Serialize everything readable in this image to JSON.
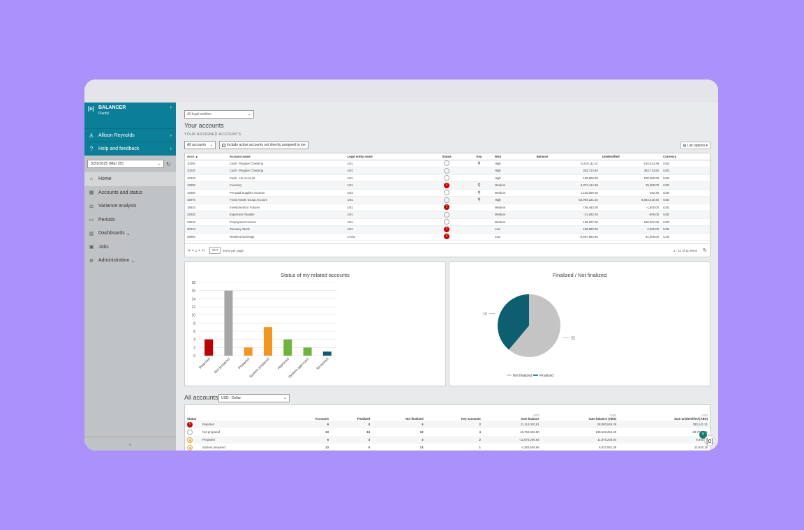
{
  "sidebar": {
    "brand_name": "BALANCER",
    "brand_sub": "Planful",
    "user": "Allison Reynolds",
    "help": "Help and feedback",
    "period": "3/31/2025 (Mar 25)",
    "nav": [
      {
        "label": "Home",
        "icon": "home-icon"
      },
      {
        "label": "Accounts and status",
        "icon": "table-icon"
      },
      {
        "label": "Variance analysis",
        "icon": "variance-icon"
      },
      {
        "label": "Periods",
        "icon": "calendar-icon"
      },
      {
        "label": "Dashboards",
        "icon": "chart-icon"
      },
      {
        "label": "Jobs",
        "icon": "briefcase-icon"
      },
      {
        "label": "Administration",
        "icon": "gear-icon"
      }
    ]
  },
  "main": {
    "legal_entities": "All legal entities",
    "your_accounts": "Your accounts",
    "assigned": "YOUR ASSIGNED ACCOUNTS",
    "filter": "All accounts",
    "include_label": "Include active accounts not directly assigned to me",
    "list_options": "List options",
    "table": {
      "headers": [
        "Acc# ▲",
        "Account name",
        "Legal entity name",
        "Status",
        "Key",
        "Risk",
        "Balance",
        "Unidentified",
        "Currency"
      ],
      "rows": [
        [
          "10200",
          "Cash - Regular Checking",
          "US1",
          "open",
          "key",
          "High",
          "5,220,111.01",
          "-120,614.39",
          "USD"
        ],
        [
          "10230",
          "Cash - Regular Checking",
          "US1",
          "open",
          "",
          "High",
          "363,713.50",
          "363,713.50",
          "USD"
        ],
        [
          "10240",
          "Cash - UK Account",
          "US1",
          "open",
          "",
          "High",
          "100,809.08",
          "100,000.00",
          "USD"
        ],
        [
          "12000",
          "Inventory",
          "US1",
          "rejected",
          "key",
          "Medium",
          "9,072,114.58",
          "25,000.00",
          "USD"
        ],
        [
          "13000",
          "Pre-paid Supplier Invoices",
          "US1",
          "open",
          "key",
          "Medium",
          "1,426,059.48",
          "-162.30",
          "USD"
        ],
        [
          "15070",
          "Fixed Assets Group Account",
          "US1",
          "open",
          "key",
          "High",
          "53,094,131.63",
          "5,654,518.40",
          "USD"
        ],
        [
          "18010",
          "Investments in Futures",
          "US1",
          "rejected",
          "",
          "Medium",
          "746,463.00",
          "-1,500.00",
          "USD"
        ],
        [
          "22030",
          "Expenses Payable",
          "US1",
          "open",
          "",
          "Medium",
          "-21,932.49",
          "-600.00",
          "USD"
        ],
        [
          "23010",
          "Prepayment Invoice",
          "US1",
          "open",
          "",
          "Medium",
          "168,307.06",
          "168,307.06",
          "USD"
        ],
        [
          "30010",
          "Treasury Stock",
          "US1",
          "rejected",
          "",
          "Low",
          "108,880.00",
          "2,500.00",
          "USD"
        ],
        [
          "39000",
          "Retained Earnings",
          "CAN1",
          "rejected",
          "",
          "Low",
          "-6,597,864.50",
          "31,500.00",
          "CAD"
        ]
      ]
    },
    "pager": {
      "page": "1",
      "page_size": "15",
      "per_page_label": "items per page",
      "summary": "1 - 11 of 11 items"
    },
    "all_accounts": "All accounts",
    "currency": "USD - Dollar",
    "summary": {
      "headers": [
        "Status",
        "Accounts",
        "Finalized",
        "Not finalized",
        "Key accounts",
        "Sum balance",
        "Sum balance (ABS)",
        "Sum unidentified (ABS)"
      ],
      "usd": "USD",
      "rows": [
        {
          "status": "Rejected",
          "kind": "rejected",
          "accounts": "6",
          "finalized": "0",
          "not_finalized": "6",
          "key": "2",
          "sum": "11,114,030.81",
          "sum_abs": "28,080,645.39",
          "unid": "330,141.31"
        },
        {
          "status": "Not prepared",
          "kind": "open",
          "accounts": "23",
          "finalized": "13",
          "not_finalized": "10",
          "key": "4",
          "sum": "16,763,526.80",
          "sum_abs": "130,626,264.49",
          "unid": "-29,707,181"
        },
        {
          "status": "Prepared",
          "kind": "prepared",
          "accounts": "6",
          "finalized": "3",
          "not_finalized": "3",
          "key": "2",
          "sum": "-11,875,206.84",
          "sum_abs": "11,875,206.94",
          "unid": "6,640.88"
        },
        {
          "status": "System prepared",
          "kind": "prepared",
          "accounts": "13",
          "finalized": "0",
          "not_finalized": "13",
          "key": "1",
          "sum": "-4,263,526.56",
          "sum_abs": "6,937,651.38",
          "unid": "14,640.15"
        }
      ]
    },
    "fab_badge": "9"
  },
  "chart_data": [
    {
      "type": "bar",
      "title": "Status of my related accounts",
      "categories": [
        "Rejected",
        "Not prepared",
        "Prepared",
        "System prepared",
        "Approved",
        "System approved",
        "Reviewed"
      ],
      "values": [
        4,
        16,
        2,
        7,
        4,
        2,
        1
      ],
      "colors": [
        "#c00000",
        "#a6a6a6",
        "#f7941d",
        "#f7941d",
        "#6fb33f",
        "#6fb33f",
        "#0b5f6f"
      ],
      "ylim": [
        0,
        18
      ],
      "yticks": [
        "0",
        "2",
        "4",
        "6",
        "8",
        "10",
        "12",
        "14",
        "16",
        "18"
      ],
      "grid": true
    },
    {
      "type": "pie",
      "title": "Finalized / Not finalized",
      "labels": [
        "Not finalized",
        "Finalized"
      ],
      "values": [
        22,
        14
      ],
      "value_labels": [
        "22",
        "14"
      ],
      "colors": [
        "#c4c4c4",
        "#0b5f6f"
      ],
      "legend": "bottom"
    }
  ]
}
